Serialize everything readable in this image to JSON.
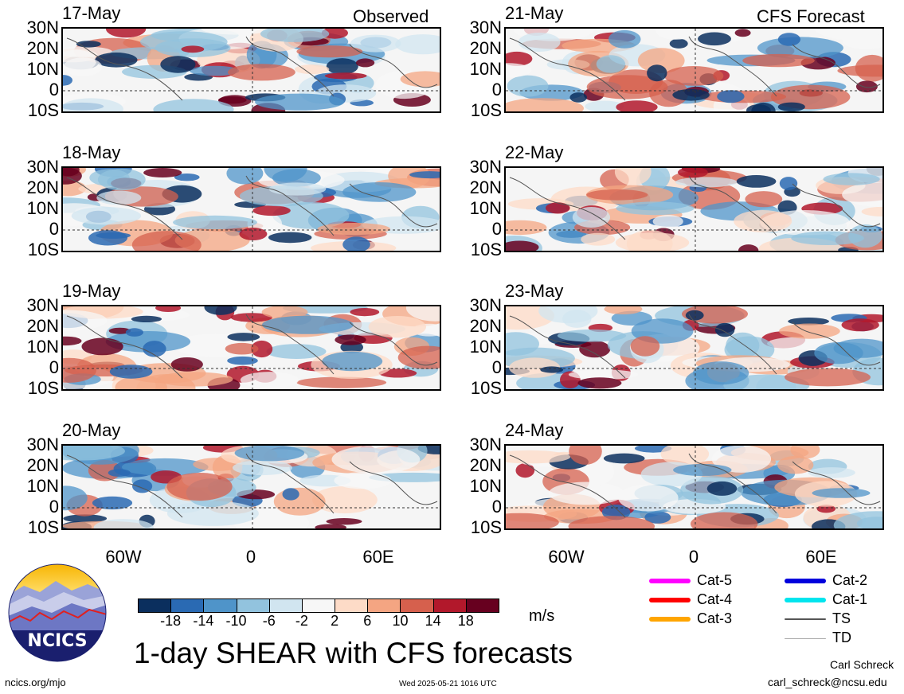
{
  "headings": {
    "observed": "Observed",
    "forecast": "CFS Forecast"
  },
  "panels": [
    {
      "date": "17-May",
      "column": "observed",
      "row": 0
    },
    {
      "date": "18-May",
      "column": "observed",
      "row": 1
    },
    {
      "date": "19-May",
      "column": "observed",
      "row": 2
    },
    {
      "date": "20-May",
      "column": "observed",
      "row": 3
    },
    {
      "date": "21-May",
      "column": "forecast",
      "row": 0
    },
    {
      "date": "22-May",
      "column": "forecast",
      "row": 1
    },
    {
      "date": "23-May",
      "column": "forecast",
      "row": 2
    },
    {
      "date": "24-May",
      "column": "forecast",
      "row": 3
    }
  ],
  "lat_labels": [
    "30N",
    "20N",
    "10N",
    "0",
    "10S"
  ],
  "lon_labels": [
    "60W",
    "0",
    "60E"
  ],
  "colorbar": {
    "unit": "m/s",
    "ticks": [
      "-18",
      "-14",
      "-10",
      "-6",
      "-2",
      "2",
      "6",
      "10",
      "14",
      "18"
    ],
    "colors": [
      "#0b2f5e",
      "#2a6ab3",
      "#4f94c9",
      "#92c3de",
      "#d1e5f0",
      "#f7f7f7",
      "#fddbc7",
      "#f4a582",
      "#d6604d",
      "#b2182b",
      "#67001f"
    ]
  },
  "title": "1-day SHEAR with CFS forecasts",
  "legend": [
    {
      "label": "Cat-5",
      "color": "#ff00ff"
    },
    {
      "label": "Cat-4",
      "color": "#ff0000"
    },
    {
      "label": "Cat-3",
      "color": "#ffa500"
    },
    {
      "label": "Cat-2",
      "color": "#0000dd"
    },
    {
      "label": "Cat-1",
      "color": "#00e5ee"
    },
    {
      "label": "TS",
      "color": "#555555"
    },
    {
      "label": "TD",
      "color": "#aaaaaa"
    }
  ],
  "logo": {
    "text": "NCICS"
  },
  "footer": {
    "left": "ncics.org/mjo",
    "center": "Wed 2025-05-21 1016 UTC",
    "author": "Carl Schreck",
    "email": "carl_schreck@ncsu.edu"
  }
}
